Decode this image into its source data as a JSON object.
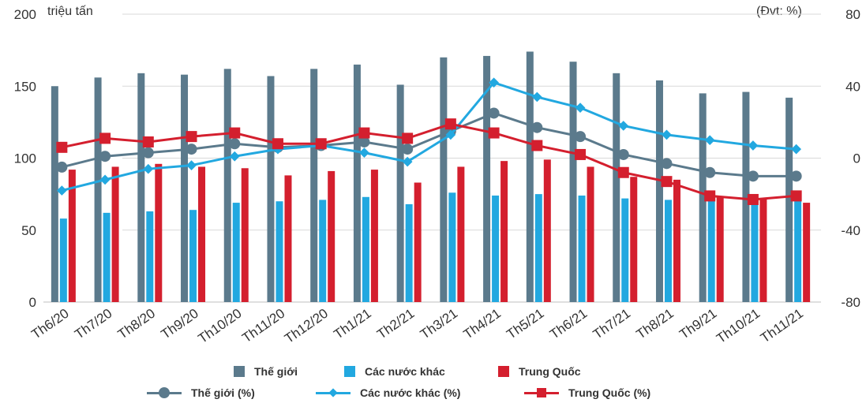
{
  "chart_data": {
    "type": "bar+line",
    "left_axis_unit": "triệu tấn",
    "right_axis_unit": "(Đvt: %)",
    "categories": [
      "Th6/20",
      "Th7/20",
      "Th8/20",
      "Th9/20",
      "Th10/20",
      "Th11/20",
      "Th12/20",
      "Th1/21",
      "Th2/21",
      "Th3/21",
      "Th4/21",
      "Th5/21",
      "Th6/21",
      "Th7/21",
      "Th8/21",
      "Th9/21",
      "Th10/21",
      "Th11/21"
    ],
    "y_left": {
      "ylim": [
        0,
        200
      ],
      "ticks": [
        0,
        50,
        100,
        150,
        200
      ]
    },
    "y_right": {
      "ylim": [
        -80,
        80
      ],
      "ticks": [
        -80,
        -40,
        0,
        40,
        80
      ]
    },
    "bar_series": [
      {
        "name": "Thế giới",
        "color": "#5b7a8c",
        "values": [
          150,
          156,
          159,
          158,
          162,
          157,
          162,
          165,
          151,
          170,
          171,
          174,
          167,
          159,
          154,
          145,
          146,
          142
        ]
      },
      {
        "name": "Các nước khác",
        "color": "#22a8e0",
        "values": [
          58,
          62,
          63,
          64,
          69,
          70,
          71,
          73,
          68,
          76,
          74,
          75,
          74,
          72,
          71,
          72,
          68,
          71
        ]
      },
      {
        "name": "Trung Quốc",
        "color": "#d41f2e",
        "values": [
          92,
          94,
          96,
          94,
          93,
          88,
          91,
          92,
          83,
          94,
          98,
          99,
          94,
          87,
          85,
          73,
          72,
          69
        ]
      }
    ],
    "line_series": [
      {
        "name": "Thế giới (%)",
        "color": "#5b7a8c",
        "marker": "circle",
        "values": [
          -5,
          1,
          3,
          5,
          8,
          6,
          7,
          9,
          5,
          15,
          25,
          17,
          12,
          2,
          -3,
          -8,
          -10,
          -10
        ]
      },
      {
        "name": "Các nước khác (%)",
        "color": "#22a8e0",
        "marker": "diamond",
        "values": [
          -18,
          -12,
          -6,
          -4,
          1,
          5,
          7,
          3,
          -2,
          13,
          42,
          34,
          28,
          18,
          13,
          10,
          7,
          5
        ]
      },
      {
        "name": "Trung Quốc (%)",
        "color": "#d41f2e",
        "marker": "square",
        "values": [
          6,
          11,
          9,
          12,
          14,
          8,
          8,
          14,
          11,
          19,
          14,
          7,
          2,
          -8,
          -13,
          -21,
          -23,
          -21
        ]
      }
    ]
  }
}
